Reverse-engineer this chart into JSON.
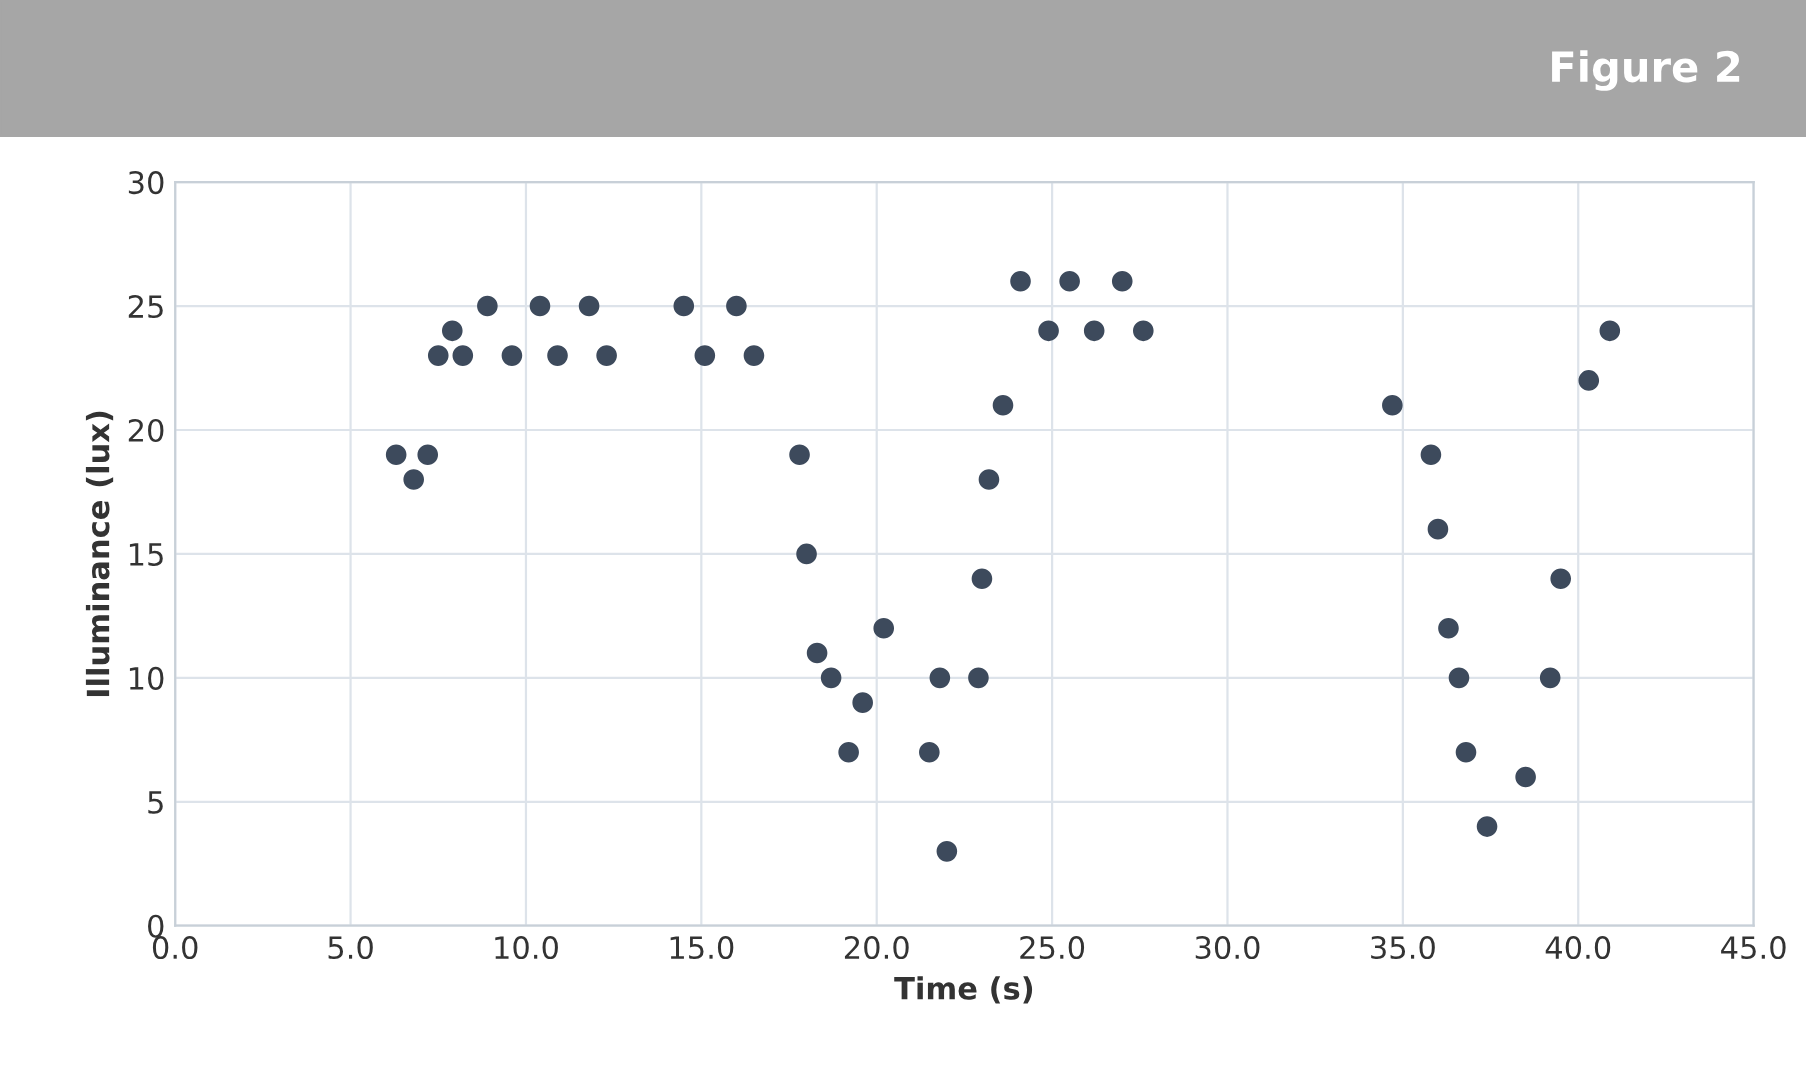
{
  "chart_data": {
    "type": "scatter",
    "title": "Figure 2",
    "xlabel": "Time (s)",
    "ylabel": "Illuminance (lux)",
    "x": [
      6.3,
      6.8,
      7.2,
      7.5,
      7.9,
      8.2,
      8.9,
      9.6,
      10.4,
      10.9,
      11.8,
      12.3,
      14.5,
      15.1,
      16.0,
      16.5,
      17.8,
      18.0,
      18.3,
      18.7,
      19.2,
      19.6,
      20.2,
      21.5,
      21.8,
      22.0,
      22.9,
      23.0,
      23.2,
      23.6,
      24.1,
      24.9,
      25.5,
      26.2,
      27.0,
      27.6,
      34.7,
      35.8,
      36.0,
      36.3,
      36.6,
      36.8,
      37.4,
      38.5,
      39.2,
      39.5,
      40.3,
      40.9
    ],
    "values": [
      19,
      18,
      19,
      23,
      24,
      23,
      25,
      23,
      25,
      23,
      25,
      23,
      25,
      23,
      25,
      23,
      19,
      15,
      11,
      10,
      7,
      9,
      12,
      7,
      10,
      3,
      10,
      14,
      18,
      21,
      26,
      24,
      26,
      24,
      26,
      24,
      21,
      19,
      16,
      12,
      10,
      7,
      4,
      6,
      10,
      14,
      22,
      24
    ],
    "color": "#3d4a5c",
    "marker": "circle",
    "xlim": [
      0,
      45
    ],
    "xticks": [
      {
        "value": 0,
        "label": "0.0"
      },
      {
        "value": 5,
        "label": "5.0"
      },
      {
        "value": 10,
        "label": "10.0"
      },
      {
        "value": 15,
        "label": "15.0"
      },
      {
        "value": 20,
        "label": "20.0"
      },
      {
        "value": 25,
        "label": "25.0"
      },
      {
        "value": 30,
        "label": "30.0"
      },
      {
        "value": 35,
        "label": "35.0"
      },
      {
        "value": 40,
        "label": "40.0"
      },
      {
        "value": 45,
        "label": "45.0"
      }
    ],
    "ylim": [
      0,
      30
    ],
    "yticks": [
      0,
      5,
      10,
      15,
      20,
      25,
      30
    ],
    "grid": true
  }
}
